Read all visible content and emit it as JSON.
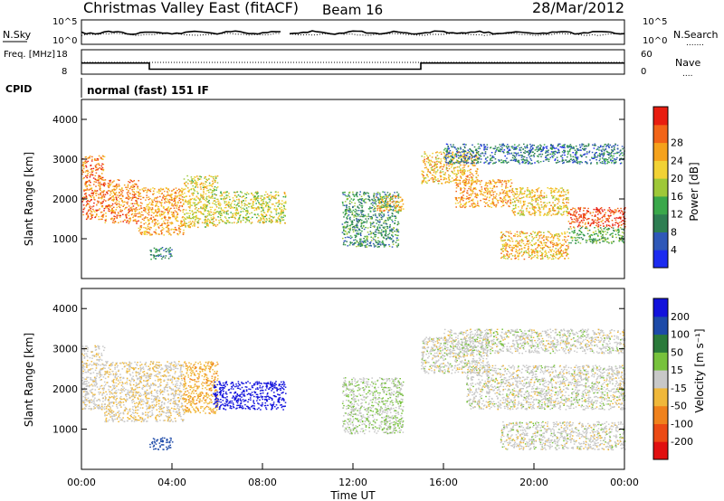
{
  "header": {
    "title": "Christmas Valley East (fitACF)",
    "beam": "Beam 16",
    "date": "28/Mar/2012"
  },
  "status_panel": {
    "nsky_label": "N.Sky",
    "nsearch_label": "N.Search",
    "nsearch_style": ".......",
    "noise_ticks_left": [
      "10^5",
      "10^0"
    ],
    "noise_ticks_right": [
      "10^5",
      "10^0"
    ],
    "freq_label": "Freq. [MHz]",
    "freq_ticks": [
      "18",
      "8"
    ],
    "nave_label": "Nave",
    "nave_style": "....",
    "nave_ticks": [
      "60",
      "0"
    ],
    "cpid_label": "CPID",
    "cpid_value": "normal (fast) 151 IF",
    "gap_hour": 9.0,
    "freq_steps": [
      {
        "start": 0.0,
        "end": 3.0,
        "value": 12.5
      },
      {
        "start": 3.0,
        "end": 9.0,
        "value": 9.5
      },
      {
        "start": 9.0,
        "end": 15.0,
        "value": 9.5
      },
      {
        "start": 15.0,
        "end": 24.0,
        "value": 12.5
      }
    ]
  },
  "colors": {
    "power_scale": [
      "#1c2bf0",
      "#2f58b8",
      "#2e7e52",
      "#3aa84a",
      "#9ec838",
      "#f2d234",
      "#f5a21c",
      "#f26418",
      "#e81d10"
    ],
    "velocity_scale": [
      "#1212dc",
      "#1d4aa8",
      "#2a7a3a",
      "#77c23c",
      "#c8c8c8",
      "#f0b83a",
      "#f0821c",
      "#ec4a14",
      "#e11010"
    ]
  },
  "chart_data": [
    {
      "type": "heatmap",
      "name": "power",
      "xlabel": "Time UT",
      "ylabel": "Slant Range [km]",
      "xlim": [
        0,
        24
      ],
      "ylim": [
        0,
        4500
      ],
      "x_ticks": [
        "00:00",
        "04:00",
        "08:00",
        "12:00",
        "16:00",
        "20:00",
        "00:00"
      ],
      "y_ticks": [
        1000,
        2000,
        3000,
        4000
      ],
      "colorbar": {
        "label": "Power [dB]",
        "ticks": [
          4,
          8,
          12,
          16,
          20,
          24,
          28
        ]
      },
      "scatter_regions": [
        {
          "t0": 0.0,
          "t1": 1.0,
          "r0": 1500,
          "r1": 3100,
          "intensity": 0.85
        },
        {
          "t0": 1.0,
          "t1": 2.5,
          "r0": 1400,
          "r1": 2500,
          "intensity": 0.8
        },
        {
          "t0": 2.5,
          "t1": 4.5,
          "r0": 1100,
          "r1": 2300,
          "intensity": 0.75
        },
        {
          "t0": 4.5,
          "t1": 6.0,
          "r0": 1300,
          "r1": 2600,
          "intensity": 0.6
        },
        {
          "t0": 6.0,
          "t1": 9.0,
          "r0": 1400,
          "r1": 2200,
          "intensity": 0.55
        },
        {
          "t0": 3.0,
          "t1": 4.0,
          "r0": 500,
          "r1": 800,
          "intensity": 0.25
        },
        {
          "t0": 11.5,
          "t1": 14.0,
          "r0": 800,
          "r1": 2200,
          "intensity": 0.3
        },
        {
          "t0": 13.0,
          "t1": 14.2,
          "r0": 1700,
          "r1": 2100,
          "intensity": 0.7
        },
        {
          "t0": 15.0,
          "t1": 17.5,
          "r0": 2400,
          "r1": 3200,
          "intensity": 0.7
        },
        {
          "t0": 16.5,
          "t1": 19.0,
          "r0": 1800,
          "r1": 2500,
          "intensity": 0.75
        },
        {
          "t0": 19.0,
          "t1": 21.5,
          "r0": 1600,
          "r1": 2300,
          "intensity": 0.65
        },
        {
          "t0": 21.5,
          "t1": 24.0,
          "r0": 1300,
          "r1": 1800,
          "intensity": 0.95
        },
        {
          "t0": 18.5,
          "t1": 21.5,
          "r0": 500,
          "r1": 1200,
          "intensity": 0.7
        },
        {
          "t0": 21.5,
          "t1": 24.0,
          "r0": 900,
          "r1": 1300,
          "intensity": 0.4
        },
        {
          "t0": 16.0,
          "t1": 24.0,
          "r0": 2900,
          "r1": 3400,
          "intensity": 0.2
        }
      ]
    },
    {
      "type": "heatmap",
      "name": "velocity",
      "xlabel": "Time UT",
      "ylabel": "Slant Range [km]",
      "xlim": [
        0,
        24
      ],
      "ylim": [
        0,
        4500
      ],
      "x_ticks": [
        "00:00",
        "04:00",
        "08:00",
        "12:00",
        "16:00",
        "20:00",
        "00:00"
      ],
      "y_ticks": [
        1000,
        2000,
        3000,
        4000
      ],
      "colorbar": {
        "label": "Velocity [m s⁻¹]",
        "ticks": [
          200,
          100,
          50,
          15,
          -15,
          -50,
          -100,
          -200
        ]
      },
      "scatter_regions": [
        {
          "t0": 0.0,
          "t1": 1.0,
          "r0": 1500,
          "r1": 3100,
          "velocity": -5
        },
        {
          "t0": 1.0,
          "t1": 4.5,
          "r0": 1200,
          "r1": 2700,
          "velocity": -10
        },
        {
          "t0": 4.5,
          "t1": 6.0,
          "r0": 1400,
          "r1": 2700,
          "velocity": -40
        },
        {
          "t0": 5.8,
          "t1": 9.0,
          "r0": 1500,
          "r1": 2200,
          "velocity": 220
        },
        {
          "t0": 3.0,
          "t1": 4.0,
          "r0": 500,
          "r1": 800,
          "velocity": 180
        },
        {
          "t0": 11.5,
          "t1": 14.2,
          "r0": 900,
          "r1": 2300,
          "velocity": 10
        },
        {
          "t0": 15.0,
          "t1": 18.0,
          "r0": 2400,
          "r1": 3300,
          "velocity": 0
        },
        {
          "t0": 17.0,
          "t1": 24.0,
          "r0": 1500,
          "r1": 2600,
          "velocity": 0
        },
        {
          "t0": 18.5,
          "t1": 24.0,
          "r0": 500,
          "r1": 1200,
          "velocity": 0
        },
        {
          "t0": 16.0,
          "t1": 24.0,
          "r0": 2900,
          "r1": 3500,
          "velocity": 0
        }
      ]
    }
  ]
}
